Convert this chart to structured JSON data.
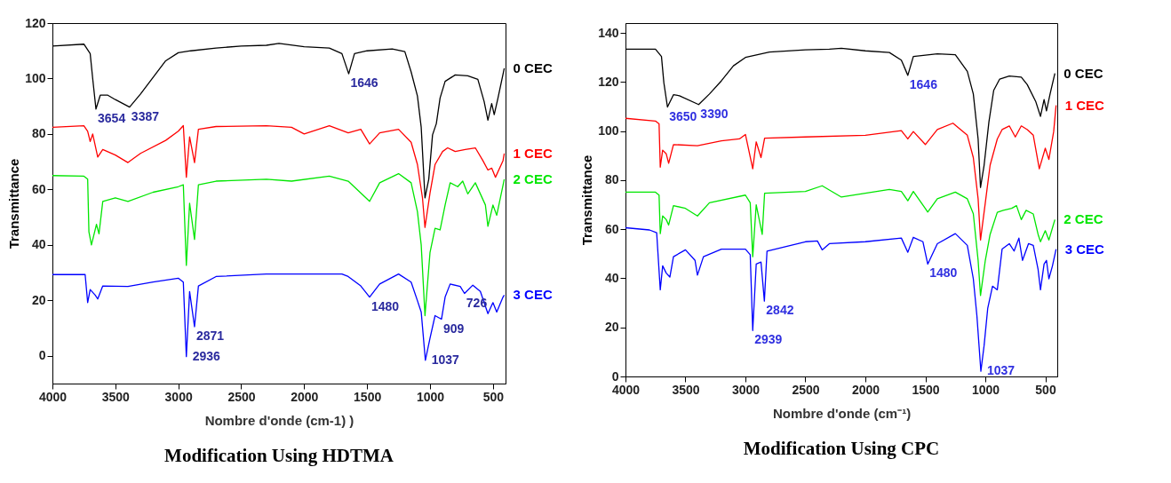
{
  "chart_data": [
    {
      "type": "line",
      "title": "Modification Using HDTMA",
      "xlabel": "Nombre d'onde (cm-1) )",
      "ylabel": "Transmittance",
      "xlim": [
        4000,
        400
      ],
      "ylim": [
        -10,
        120
      ],
      "xticks": [
        4000,
        3500,
        3000,
        2500,
        2000,
        1500,
        1000,
        500
      ],
      "yticks": [
        0,
        20,
        40,
        60,
        80,
        100,
        120
      ],
      "series": [
        {
          "name": "0 CEC",
          "color": "#000000",
          "x": [
            4000,
            3750,
            3700,
            3680,
            3654,
            3620,
            3560,
            3500,
            3387,
            3300,
            3200,
            3100,
            3000,
            2900,
            2700,
            2500,
            2300,
            2200,
            2000,
            1800,
            1700,
            1646,
            1600,
            1500,
            1300,
            1200,
            1150,
            1100,
            1070,
            1040,
            1010,
            980,
            950,
            920,
            880,
            800,
            700,
            620,
            570,
            540,
            510,
            490,
            460,
            410
          ],
          "values": [
            111.7,
            112.4,
            109,
            100,
            89,
            94,
            94,
            92.4,
            89.7,
            94.4,
            100.4,
            106.4,
            109.3,
            110,
            111,
            111.7,
            112,
            112.7,
            111.5,
            111,
            109,
            101.7,
            109,
            110,
            110.7,
            109.7,
            102.4,
            93.7,
            82.4,
            57,
            63.7,
            79.7,
            83.7,
            93,
            99,
            101.3,
            101,
            99.7,
            91.7,
            85,
            91,
            87,
            93,
            103.7
          ]
        },
        {
          "name": "1 CEC",
          "color": "#ff0000",
          "x": [
            4000,
            3750,
            3720,
            3700,
            3680,
            3640,
            3600,
            3500,
            3400,
            3300,
            3100,
            3000,
            2960,
            2936,
            2910,
            2871,
            2840,
            2700,
            2300,
            2100,
            2000,
            1800,
            1650,
            1550,
            1480,
            1400,
            1250,
            1150,
            1100,
            1060,
            1040,
            1000,
            960,
            900,
            860,
            800,
            720,
            640,
            580,
            540,
            510,
            480,
            420,
            410
          ],
          "values": [
            82.4,
            83,
            81,
            77.3,
            80,
            71.7,
            74.4,
            72.4,
            69.7,
            73,
            77.7,
            81,
            83,
            64.4,
            79,
            69.7,
            81.7,
            82.7,
            83,
            82.4,
            80,
            83,
            80.4,
            81.7,
            76.4,
            80.4,
            81.7,
            77,
            69,
            57,
            46.3,
            58.7,
            69,
            73.7,
            75,
            73.7,
            74.4,
            75,
            70.4,
            67,
            67.7,
            64.4,
            70.4,
            73
          ]
        },
        {
          "name": "2 CEC",
          "color": "#00e600",
          "x": [
            4000,
            3750,
            3720,
            3710,
            3690,
            3650,
            3630,
            3600,
            3500,
            3400,
            3200,
            3000,
            2960,
            2936,
            2910,
            2871,
            2840,
            2700,
            2300,
            2100,
            1800,
            1650,
            1480,
            1400,
            1250,
            1150,
            1100,
            1070,
            1040,
            1000,
            960,
            920,
            880,
            840,
            780,
            740,
            700,
            640,
            560,
            540,
            500,
            470,
            410
          ],
          "values": [
            65,
            64.8,
            63.7,
            44.7,
            40,
            47.4,
            44,
            55.7,
            57,
            55.7,
            59,
            61,
            61.7,
            32.6,
            55,
            42,
            61.7,
            63,
            63.7,
            63,
            64.8,
            63,
            55.7,
            62.4,
            65.7,
            62.4,
            52,
            40,
            14.5,
            37.3,
            46,
            45.4,
            54.4,
            62.4,
            61,
            63,
            58.4,
            62.4,
            54.4,
            46.7,
            54.4,
            50.7,
            63.7
          ]
        },
        {
          "name": "3 CEC",
          "color": "#0000ff",
          "x": [
            4000,
            3740,
            3720,
            3700,
            3660,
            3640,
            3600,
            3400,
            3200,
            3000,
            2960,
            2936,
            2910,
            2871,
            2840,
            2700,
            2300,
            2000,
            1700,
            1650,
            1550,
            1480,
            1400,
            1250,
            1150,
            1100,
            1070,
            1037,
            1000,
            960,
            909,
            880,
            840,
            760,
            726,
            660,
            600,
            540,
            500,
            470,
            420,
            410
          ],
          "values": [
            29.3,
            29.3,
            19.2,
            23.9,
            21.9,
            20.5,
            25.2,
            25,
            26.6,
            28,
            26.6,
            -0.3,
            23.2,
            10.5,
            25.2,
            28.6,
            29.5,
            29.5,
            29.5,
            28.6,
            25.2,
            21.2,
            25.9,
            29.5,
            26.6,
            19.9,
            15.8,
            -1.6,
            6.4,
            14.5,
            13.2,
            21.2,
            25.9,
            25,
            22.5,
            25.5,
            23.2,
            15.2,
            19.2,
            15.8,
            21.2,
            21.9
          ]
        }
      ],
      "annotations": [
        {
          "text": "3654",
          "x": 3654,
          "y": 89
        },
        {
          "text": "3387",
          "x": 3387,
          "y": 89.7
        },
        {
          "text": "1646",
          "x": 1646,
          "y": 101.7
        },
        {
          "text": "2936",
          "x": 2936,
          "y": -0.3
        },
        {
          "text": "2871",
          "x": 2871,
          "y": 10.5
        },
        {
          "text": "1480",
          "x": 1480,
          "y": 21.2
        },
        {
          "text": "1037",
          "x": 1037,
          "y": -1.6
        },
        {
          "text": "909",
          "x": 909,
          "y": 13.2
        },
        {
          "text": "726",
          "x": 726,
          "y": 22.5
        }
      ]
    },
    {
      "type": "line",
      "title": "Modification Using CPC",
      "xlabel": "Nombre d'onde (cm⁻¹)",
      "ylabel": "Transmittance",
      "xlim": [
        4000,
        400
      ],
      "ylim": [
        0,
        144
      ],
      "xticks": [
        4000,
        3500,
        3000,
        2500,
        2000,
        1500,
        1000,
        500
      ],
      "yticks": [
        0,
        20,
        40,
        60,
        80,
        100,
        120,
        140
      ],
      "series": [
        {
          "name": "0 CEC",
          "color": "#000000",
          "x": [
            4000,
            3750,
            3700,
            3680,
            3650,
            3600,
            3550,
            3390,
            3300,
            3200,
            3100,
            3000,
            2800,
            2500,
            2300,
            2200,
            2000,
            1800,
            1700,
            1646,
            1600,
            1400,
            1250,
            1150,
            1100,
            1060,
            1040,
            1010,
            970,
            930,
            880,
            800,
            700,
            650,
            580,
            540,
            510,
            490,
            460,
            420
          ],
          "values": [
            133.4,
            133.4,
            130.4,
            119.7,
            109.8,
            114.8,
            114.4,
            110.8,
            115.1,
            120.5,
            126.6,
            130,
            132.2,
            133.1,
            133.4,
            133.7,
            132.7,
            132,
            128.9,
            122.7,
            130.4,
            131.5,
            131.1,
            124.3,
            115.1,
            96.8,
            77,
            86.1,
            103.7,
            116.6,
            121.2,
            122.4,
            122,
            118.9,
            112.1,
            106,
            112.8,
            108.2,
            115.1,
            123.5
          ]
        },
        {
          "name": "1 CEC",
          "color": "#ff0000",
          "x": [
            4000,
            3750,
            3720,
            3710,
            3690,
            3660,
            3640,
            3600,
            3400,
            3200,
            3050,
            3000,
            2939,
            2910,
            2870,
            2840,
            2500,
            2000,
            1700,
            1646,
            1600,
            1500,
            1400,
            1270,
            1150,
            1100,
            1060,
            1040,
            1000,
            960,
            900,
            860,
            800,
            750,
            700,
            650,
            600,
            550,
            500,
            470,
            430,
            410
          ],
          "values": [
            105.2,
            104.1,
            102.9,
            85.3,
            92.2,
            90.7,
            86.9,
            94.5,
            94,
            96,
            96.8,
            98.6,
            84.6,
            95.6,
            89.2,
            97.1,
            97.6,
            98.3,
            100.2,
            96.8,
            99.8,
            94.5,
            100.6,
            103.2,
            98.3,
            89.2,
            72.4,
            55.6,
            70.8,
            86.1,
            96.8,
            100.6,
            102.1,
            97.6,
            102.1,
            100.6,
            98.3,
            84.6,
            93,
            88.4,
            99.8,
            110.5
          ]
        },
        {
          "name": "2 CEC",
          "color": "#00e600",
          "x": [
            4000,
            3750,
            3720,
            3710,
            3690,
            3660,
            3640,
            3600,
            3500,
            3400,
            3300,
            3000,
            2960,
            2939,
            2910,
            2860,
            2840,
            2500,
            2360,
            2200,
            2000,
            1800,
            1700,
            1646,
            1600,
            1500,
            1480,
            1400,
            1250,
            1150,
            1100,
            1060,
            1040,
            1000,
            960,
            900,
            850,
            780,
            740,
            700,
            660,
            600,
            560,
            540,
            500,
            470,
            420
          ],
          "values": [
            75.1,
            75.1,
            73.9,
            58.2,
            65.4,
            63.9,
            61.7,
            69.6,
            68.5,
            65.4,
            70.8,
            73.9,
            70.8,
            48.8,
            70,
            57.9,
            74.7,
            75.4,
            77.7,
            73.1,
            74.7,
            76.2,
            75.4,
            71.6,
            75.4,
            68.4,
            67,
            72.4,
            75.1,
            72.4,
            66.3,
            47.3,
            33,
            47.3,
            57.9,
            66.9,
            67.7,
            68.5,
            69.6,
            63.9,
            67.7,
            66.2,
            57.9,
            54.9,
            59.4,
            55.6,
            63.9
          ]
        },
        {
          "name": "3 CEC",
          "color": "#0000ff",
          "x": [
            4000,
            3800,
            3740,
            3710,
            3690,
            3660,
            3630,
            3600,
            3500,
            3420,
            3400,
            3350,
            3200,
            3000,
            2960,
            2939,
            2910,
            2870,
            2842,
            2820,
            2500,
            2400,
            2360,
            2300,
            2000,
            1700,
            1646,
            1600,
            1520,
            1480,
            1400,
            1250,
            1150,
            1100,
            1070,
            1037,
            1010,
            980,
            940,
            900,
            860,
            800,
            760,
            720,
            690,
            640,
            600,
            560,
            540,
            510,
            490,
            470,
            440,
            410
          ],
          "values": [
            60.6,
            59.7,
            58.6,
            35.3,
            45.1,
            42.1,
            40.5,
            48.8,
            51.6,
            47.3,
            41.3,
            48.8,
            51.9,
            51.9,
            49.6,
            18.7,
            45.8,
            46.6,
            30.7,
            51.1,
            54.9,
            55.2,
            51.6,
            54.1,
            54.9,
            56.4,
            50.6,
            56.7,
            54.9,
            45.8,
            54.1,
            58.2,
            53.4,
            39.8,
            24.7,
            2.1,
            12.6,
            27.7,
            36.8,
            35.3,
            51.9,
            54.1,
            51.1,
            56.4,
            47.3,
            54.1,
            53.4,
            43.6,
            35.3,
            45.8,
            47.3,
            39.8,
            45.1,
            51.9
          ]
        }
      ],
      "annotations": [
        {
          "text": "3650",
          "x": 3650,
          "y": 109.8
        },
        {
          "text": "3390",
          "x": 3390,
          "y": 110.8
        },
        {
          "text": "1646",
          "x": 1646,
          "y": 122.7
        },
        {
          "text": "2939",
          "x": 2939,
          "y": 18.7
        },
        {
          "text": "2842",
          "x": 2842,
          "y": 30.7
        },
        {
          "text": "1480",
          "x": 1480,
          "y": 45.8
        },
        {
          "text": "1037",
          "x": 1037,
          "y": 2.1
        }
      ]
    }
  ]
}
